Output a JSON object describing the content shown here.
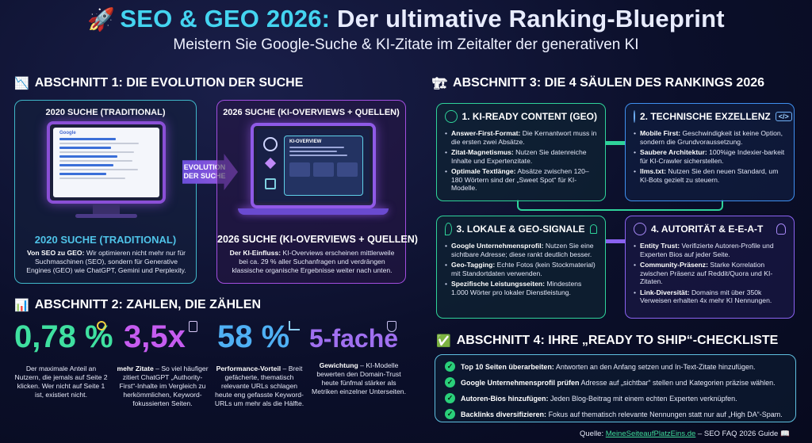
{
  "header": {
    "title_accent": "SEO & GEO 2026:",
    "title_rest": "Der ultimative Ranking-Blueprint",
    "subtitle": "Meistern Sie Google-Suche & KI-Zitate im Zeitalter der generativen KI",
    "rocket_icon": "🚀"
  },
  "section1": {
    "heading": "ABSCHNITT 1: DIE EVOLUTION DER SUCHE",
    "icon": "📉",
    "left": {
      "top_label": "2020 SUCHE (TRADITIONAL)",
      "screen_brand": "Google",
      "label": "2020 SUCHE (TRADITIONAL)",
      "desc_bold": "Von SEO zu GEO:",
      "desc": " Wir optimieren nicht mehr nur für Suchmaschinen (SEO), sondern für Generative Engines (GEO) wie ChatGPT, Gemini und Perplexity."
    },
    "arrow": {
      "line1": "EVOLUTION",
      "line2": "DER SUCHE"
    },
    "right": {
      "top_label": "2026 SUCHE (KI-OVERVIEWS + QUELLEN)",
      "screen_label": "KI-OVERVIEW",
      "label": "2026 SUCHE (KI-OVERVIEWS + QUELLEN)",
      "desc_bold": "Der KI-Einfluss:",
      "desc": " KI-Overviews erscheinen mittlerweile bei ca. 29 % aller Suchanfragen und verdrängen klassische organische Ergebnisse weiter nach unten."
    }
  },
  "section2": {
    "heading": "ABSCHNITT 2: ZAHLEN, DIE ZÄHLEN",
    "icon": "📊",
    "stats": [
      {
        "value": "0,78 %",
        "color": "#3fe0a0",
        "bold": "",
        "desc": "Der maximale Anteil an Nutzern, die jemals auf Seite 2 klicken. Wer nicht auf Seite 1 ist, existiert nicht."
      },
      {
        "value": "3,5x",
        "color": "#c65cf0",
        "bold": "mehr Zitate",
        "desc": " – So viel häufiger zitiert ChatGPT „Authority-First“-Inhalte im Vergleich zu herkömmlichen, Keyword-fokussierten Seiten."
      },
      {
        "value": "58 %",
        "color": "#4fb0f4",
        "bold": "Performance-Vorteil",
        "desc": " – Breit gefächerte, thematisch relevante URLs schlagen heute eng gefasste Keyword-URLs um mehr als die Hälfte."
      },
      {
        "value": "5-fache",
        "color": "#a070f0",
        "bold": "Gewichtung",
        "desc": " – KI-Modelle bewerten den Domain-Trust heute fünfmal stärker als Metriken einzelner Unterseiten."
      }
    ]
  },
  "section3": {
    "heading": "ABSCHNITT 3: DIE 4 SÄULEN DES RANKINGS 2026",
    "icon": "🏗",
    "cards": [
      {
        "title": "1. KI-READY CONTENT (GEO)",
        "items": [
          {
            "b": "Answer-First-Format:",
            "t": " Die Kernantwort muss in die ersten zwei Absätze."
          },
          {
            "b": "Zitat-Magnetismus:",
            "t": " Nutzen Sie datenreiche Inhalte und Expertenzitate."
          },
          {
            "b": "Optimale Textlänge:",
            "t": " Absätze zwischen 120–180 Wörtern sind der „Sweet Spot“ für KI-Modelle."
          }
        ]
      },
      {
        "title": "2. TECHNISCHE EXZELLENZ",
        "items": [
          {
            "b": "Mobile First:",
            "t": " Geschwindigkeit ist keine Option, sondern die Grundvoraussetzung."
          },
          {
            "b": "Saubere Architektur:",
            "t": " 100%ige Indexier-barkeit für KI-Crawler sicherstellen."
          },
          {
            "b": "llms.txt:",
            "t": " Nutzen Sie den neuen Standard, um KI-Bots gezielt zu steuern."
          }
        ]
      },
      {
        "title": "3. LOKALE & GEO-SIGNALE",
        "items": [
          {
            "b": "Google Unternehmensprofil:",
            "t": " Nutzen Sie eine sichtbare Adresse; diese rankt deutlich besser."
          },
          {
            "b": "Geo-Tagging:",
            "t": " Echte Fotos (kein Stockmaterial) mit Standortdaten verwenden."
          },
          {
            "b": "Spezifische Leistungsseiten:",
            "t": " Mindestens 1.000 Wörter pro lokaler Dienstleistung."
          }
        ]
      },
      {
        "title": "4. AUTORITÄT & E-E-A-T",
        "items": [
          {
            "b": "Entity Trust:",
            "t": " Verifizierte Autoren-Profile und Experten Bios auf jeder Seite."
          },
          {
            "b": "Community-Präsenz:",
            "t": " Starke Korrelation zwischen Präsenz auf Reddit/Quora und KI-Zitaten."
          },
          {
            "b": "Link-Diversität:",
            "t": " Domains mit über 350k Verweisen erhalten 4x mehr KI Nennungen."
          }
        ]
      }
    ]
  },
  "section4": {
    "heading": "ABSCHNITT 4: IHRE „READY TO SHIP“-CHECKLISTE",
    "icon": "✅",
    "items": [
      {
        "b": "Top 10 Seiten überarbeiten:",
        "t": " Antworten an den Anfang setzen und In-Text-Zitate hinzufügen."
      },
      {
        "b": "Google Unternehmensprofil prüfen",
        "t": " Adresse auf „sichtbar“ stellen und Kategorien präzise wählen."
      },
      {
        "b": "Autoren-Bios hinzufügen:",
        "t": " Jeden Blog-Beitrag mit einem echten Experten verknüpfen."
      },
      {
        "b": "Backlinks diversifizieren:",
        "t": " Fokus auf thematisch relevante Nennungen statt nur auf „High DA“-Spam."
      }
    ]
  },
  "footer": {
    "prefix": "Quelle: ",
    "link": "MeineSeiteaufPlatzEins.de",
    "suffix": " – SEO FAQ 2026 Guide 📖"
  }
}
